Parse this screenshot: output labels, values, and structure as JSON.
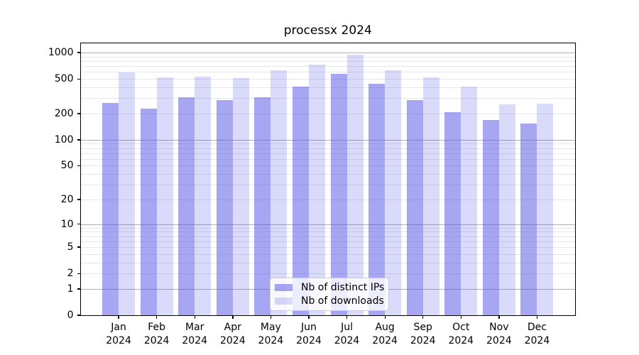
{
  "title": "processx 2024",
  "chart_data": {
    "type": "bar",
    "title": "processx 2024",
    "categories": [
      "Jan 2024",
      "Feb 2024",
      "Mar 2024",
      "Apr 2024",
      "May 2024",
      "Jun 2024",
      "Jul 2024",
      "Aug 2024",
      "Sep 2024",
      "Oct 2024",
      "Nov 2024",
      "Dec 2024"
    ],
    "series": [
      {
        "name": "Nb of distinct IPs",
        "color": "rgba(77,77,229,0.5)",
        "values": [
          265,
          228,
          307,
          287,
          306,
          407,
          575,
          436,
          288,
          209,
          168,
          155
        ]
      },
      {
        "name": "Nb of downloads",
        "color": "rgba(70,70,230,0.2)",
        "values": [
          590,
          520,
          533,
          514,
          631,
          733,
          940,
          632,
          520,
          408,
          257,
          262
        ]
      }
    ],
    "y_ticks": [
      0,
      1,
      2,
      5,
      10,
      20,
      50,
      100,
      200,
      500,
      1000
    ],
    "y_scale": "log10(1+x)",
    "ylim": [
      0,
      1275
    ],
    "xlabel": "",
    "ylabel": "",
    "grid": "horizontal major (1,10,100,1000) + minor (2-9 per decade)",
    "legend_position": "lower center inside plot",
    "spine_color": "#000000",
    "major_grid_color": "#b0b0b0",
    "minor_grid_color": "#e7e7e7"
  }
}
